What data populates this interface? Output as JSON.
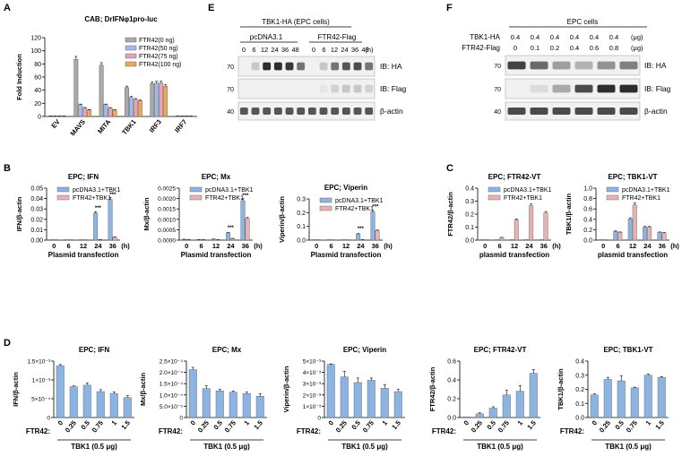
{
  "panel_letters": [
    "A",
    "E",
    "F",
    "B",
    "C",
    "D"
  ],
  "colors": {
    "control": "#8cb4e2",
    "ftr42": "#e7b2b2",
    "gray": "#a9a9a9",
    "n50": "#9fbbe8",
    "n75": "#e5a3b8",
    "n100": "#e9a95a",
    "blot_bg": "#f1f1f1",
    "band": "#222222"
  },
  "blotE": {
    "header": "TBK1-HA (EPC cells)",
    "groups": [
      "pcDNA3.1",
      "FTR42-Flag"
    ],
    "lanes": [
      "0",
      "6",
      "12",
      "24",
      "36",
      "48"
    ],
    "unit": "(h)",
    "rows": [
      {
        "mw": "70",
        "label": "IB: HA"
      },
      {
        "mw": "70",
        "label": "IB: Flag"
      },
      {
        "mw": "40",
        "label": "β-actin"
      }
    ]
  },
  "blotF": {
    "header": "EPC cells",
    "row_labels": [
      "TBK1-HA",
      "FTR42-Flag"
    ],
    "tbk1": [
      "0.4",
      "0.4",
      "0.4",
      "0.4",
      "0.4",
      "0.4"
    ],
    "ftr42": [
      "0",
      "0.1",
      "0.2",
      "0.4",
      "0.6",
      "0.8"
    ],
    "unit": "(μg)",
    "rows": [
      {
        "mw": "70",
        "label": "IB: HA"
      },
      {
        "mw": "70",
        "label": "IB: Flag"
      },
      {
        "mw": "40",
        "label": "β-actin"
      }
    ]
  },
  "chart_data": [
    {
      "id": "A",
      "type": "bar",
      "title": "CAB; DrIFNφ1pro-luc",
      "ylabel": "Fold Induction",
      "ylim": [
        0,
        120
      ],
      "yticks": [
        "0",
        "20",
        "40",
        "60",
        "80",
        "100",
        "120"
      ],
      "categories": [
        "EV",
        "MAVS",
        "MITA",
        "TBK1",
        "IRF3",
        "IRF7"
      ],
      "series": [
        {
          "name": "FTR42(0 ng)",
          "values": [
            1,
            87,
            78,
            44,
            50,
            1
          ]
        },
        {
          "name": "FTR42(50 ng)",
          "values": [
            1,
            18,
            18,
            29,
            51,
            1
          ]
        },
        {
          "name": "FTR42(75 ng)",
          "values": [
            1,
            13,
            13,
            26,
            51,
            1
          ]
        },
        {
          "name": "FTR42(100 ng)",
          "values": [
            1,
            10,
            10,
            24,
            46,
            1
          ]
        }
      ]
    },
    {
      "id": "B1",
      "type": "bar",
      "title": "EPC; IFN",
      "ylabel": "IFN/β-actin",
      "ylim": [
        0,
        0.05
      ],
      "yticks": [
        "0.00",
        "0.01",
        "0.02",
        "0.03",
        "0.04",
        "0.05"
      ],
      "xlabel": "Plasmid transfection",
      "categories": [
        "0",
        "6",
        "12",
        "24",
        "36"
      ],
      "xunit": "(h)",
      "series": [
        {
          "name": "pcDNA3.1+TBK1",
          "values": [
            0,
            0,
            0,
            0.026,
            0.039
          ]
        },
        {
          "name": "FTR42+TBK1",
          "values": [
            0,
            0,
            0,
            0.0004,
            0.003
          ]
        }
      ],
      "annotations": [
        "***",
        "***"
      ]
    },
    {
      "id": "B2",
      "type": "bar",
      "title": "EPC; Mx",
      "ylabel": "Mx/β-actin",
      "ylim": [
        0,
        0.0025
      ],
      "yticks": [
        "0.0000",
        "0.0005",
        "0.0010",
        "0.0015",
        "0.0020",
        "0.0025"
      ],
      "xlabel": "Plasmid transfection",
      "categories": [
        "0",
        "6",
        "12",
        "24",
        "36"
      ],
      "xunit": "(h)",
      "series": [
        {
          "name": "pcDNA3.1+TBK1",
          "values": [
            4e-05,
            3e-05,
            5e-05,
            0.00035,
            0.0019
          ]
        },
        {
          "name": "FTR42+TBK1",
          "values": [
            3e-05,
            2e-05,
            2e-05,
            8e-05,
            0.00104
          ]
        }
      ],
      "annotations": [
        "***",
        "***"
      ]
    },
    {
      "id": "B3",
      "type": "bar",
      "title": "EPC; Viperin",
      "ylabel": "Viperin/β-actin",
      "ylim": [
        0,
        0.3
      ],
      "yticks": [
        "0.0",
        "0.1",
        "0.2",
        "0.3"
      ],
      "xlabel": "Plasmid transfection",
      "categories": [
        "0",
        "6",
        "12",
        "24",
        "36"
      ],
      "xunit": "(h)",
      "series": [
        {
          "name": "pcDNA3.1+TBK1",
          "values": [
            0,
            0,
            0,
            0.045,
            0.205
          ]
        },
        {
          "name": "FTR42+TBK1",
          "values": [
            0,
            0,
            0,
            0.003,
            0.07
          ]
        }
      ],
      "annotations": [
        "***",
        "***"
      ]
    },
    {
      "id": "C1",
      "type": "bar",
      "title": "EPC; FTR42-VT",
      "ylabel": "FTR42/β-actin",
      "ylim": [
        0,
        0.4
      ],
      "yticks": [
        "0.0",
        "0.1",
        "0.2",
        "0.3",
        "0.4"
      ],
      "xlabel": "plasmid transfection",
      "categories": [
        "0",
        "6",
        "12",
        "24",
        "36"
      ],
      "xunit": "(h)",
      "series": [
        {
          "name": "pcDNA3.1+TBK1",
          "values": [
            0,
            0,
            0,
            0,
            0
          ]
        },
        {
          "name": "FTR42+TBK1",
          "values": [
            0,
            0.02,
            0.155,
            0.265,
            0.21
          ]
        }
      ]
    },
    {
      "id": "C2",
      "type": "bar",
      "title": "EPC; TBK1-VT",
      "ylabel": "TBK1/β-actin",
      "ylim": [
        0,
        1.0
      ],
      "yticks": [
        "0.0",
        "0.2",
        "0.4",
        "0.6",
        "0.8",
        "1.0"
      ],
      "xlabel": "plasmid transfection",
      "categories": [
        "0",
        "6",
        "12",
        "24",
        "36"
      ],
      "xunit": "(h)",
      "series": [
        {
          "name": "pcDNA3.1+TBK1",
          "values": [
            0,
            0.17,
            0.41,
            0.25,
            0.15
          ]
        },
        {
          "name": "FTR42+TBK1",
          "values": [
            0,
            0.15,
            0.68,
            0.25,
            0.14
          ]
        }
      ]
    },
    {
      "id": "D1",
      "type": "bar",
      "title": "EPC; IFN",
      "ylabel": "IFN/β-actin",
      "ylim": [
        0,
        0.0015
      ],
      "yticks": [
        "0",
        "5×10⁻⁴",
        "1×10⁻³",
        "1.5×10⁻³"
      ],
      "xprefix": "FTR42:",
      "xgroup": "TBK1 (0.5 μg)",
      "categories": [
        "0",
        "0.25",
        "0.5",
        "0.75",
        "1",
        "1.5"
      ],
      "values": [
        0.00138,
        0.00082,
        0.00086,
        0.00069,
        0.00064,
        0.00053
      ],
      "errors": [
        3e-05,
        2e-05,
        6e-05,
        5e-05,
        4e-05,
        5e-05
      ]
    },
    {
      "id": "D2",
      "type": "bar",
      "title": "EPC; Mx",
      "ylabel": "Mx/β-actin",
      "ylim": [
        0,
        0.00025
      ],
      "yticks": [
        "0",
        "5.0×10⁻⁵",
        "1.0×10⁻⁴",
        "1.5×10⁻⁴",
        "2.0×10⁻⁴",
        "2.5×10⁻⁴"
      ],
      "xprefix": "FTR42:",
      "xgroup": "TBK1 (0.5 μg)",
      "categories": [
        "0",
        "0.25",
        "0.5",
        "0.75",
        "1",
        "1.5"
      ],
      "values": [
        0.000212,
        0.000128,
        0.000118,
        0.000112,
        0.000106,
        9.4e-05
      ],
      "errors": [
        1e-05,
        1.2e-05,
        7e-06,
        5e-06,
        8e-06,
        1.2e-05
      ]
    },
    {
      "id": "D3",
      "type": "bar",
      "title": "EPC; Viperin",
      "ylabel": "Viperin/β-actin",
      "ylim": [
        0,
        0.005
      ],
      "yticks": [
        "0",
        "1×10⁻³",
        "2×10⁻³",
        "3×10⁻³",
        "4×10⁻³",
        "5×10⁻³"
      ],
      "xprefix": "FTR42:",
      "xgroup": "TBK1 (0.5 μg)",
      "categories": [
        "0",
        "0.25",
        "0.5",
        "0.75",
        "1",
        "1.5"
      ],
      "values": [
        0.0047,
        0.0036,
        0.0031,
        0.0033,
        0.0026,
        0.0023
      ],
      "errors": [
        5e-05,
        0.0005,
        0.0004,
        0.0002,
        0.0003,
        0.0002
      ]
    },
    {
      "id": "D4",
      "type": "bar",
      "title": "EPC; FTR42-VT",
      "ylabel": "FTR42/β-actin",
      "ylim": [
        0,
        0.6
      ],
      "yticks": [
        "0.0",
        "0.2",
        "0.4",
        "0.6"
      ],
      "xprefix": "FTR42:",
      "xgroup": "TBK1 (0.5 μg)",
      "categories": [
        "0",
        "0.25",
        "0.5",
        "0.75",
        "1",
        "1.5"
      ],
      "values": [
        0.0,
        0.04,
        0.1,
        0.24,
        0.28,
        0.47
      ],
      "errors": [
        0.0,
        0.01,
        0.015,
        0.05,
        0.06,
        0.04
      ]
    },
    {
      "id": "D5",
      "type": "bar",
      "title": "EPC; TBK1-VT",
      "ylabel": "TBK1/β-actin",
      "ylim": [
        0,
        0.4
      ],
      "yticks": [
        "0.0",
        "0.1",
        "0.2",
        "0.3",
        "0.4"
      ],
      "xprefix": "FTR42:",
      "xgroup": "TBK1 (0.5 μg)",
      "categories": [
        "0",
        "0.25",
        "0.5",
        "0.75",
        "1",
        "1.5"
      ],
      "values": [
        0.16,
        0.27,
        0.26,
        0.21,
        0.3,
        0.285
      ],
      "errors": [
        0.01,
        0.015,
        0.035,
        0.005,
        0.008,
        0.005
      ]
    }
  ]
}
